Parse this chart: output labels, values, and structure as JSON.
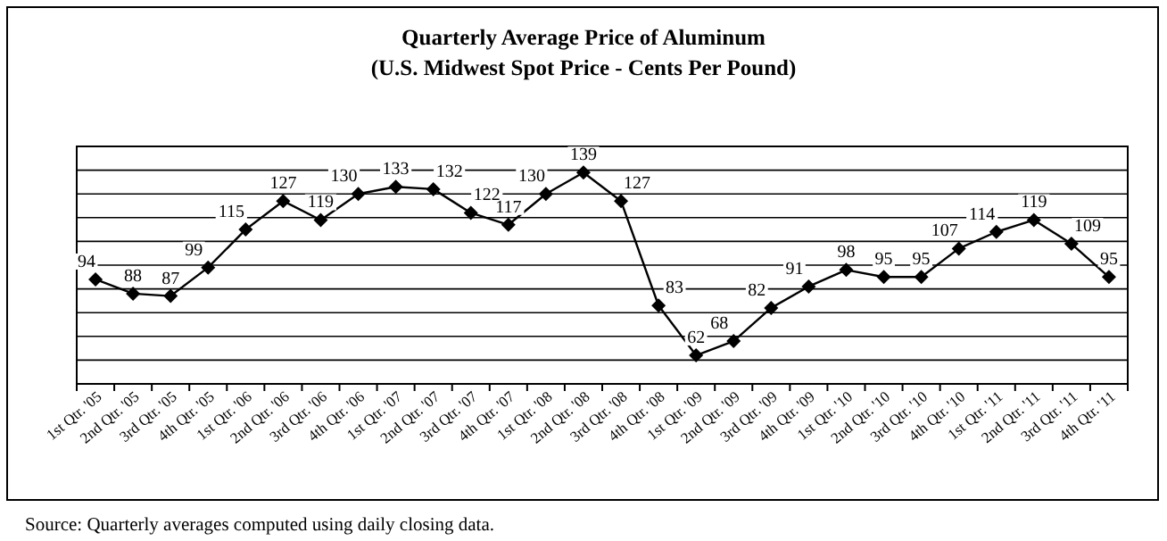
{
  "chart_data": {
    "type": "line",
    "title": "Quarterly Average Price of Aluminum",
    "subtitle": "(U.S. Midwest Spot Price - Cents Per Pound)",
    "categories": [
      "1st Qtr. '05",
      "2nd Qtr. '05",
      "3rd Qtr. '05",
      "4th Qtr. '05",
      "1st Qtr. '06",
      "2nd Qtr. '06",
      "3rd Qtr. '06",
      "4th Qtr. '06",
      "1st Qtr. '07",
      "2nd Qtr. '07",
      "3rd Qtr. '07",
      "4th Qtr. '07",
      "1st Qtr. '08",
      "2nd Qtr. '08",
      "3rd Qtr. '08",
      "4th Qtr. '08",
      "1st Qtr. '09",
      "2nd Qtr. '09",
      "3rd Qtr. '09",
      "4th Qtr. '09",
      "1st Qtr. '10",
      "2nd Qtr. '10",
      "3rd Qtr. '10",
      "4th Qtr. '10",
      "1st Qtr. '11",
      "2nd Qtr. '11",
      "3rd Qtr. '11",
      "4th Qtr. '11"
    ],
    "series": [
      {
        "color": "#000000",
        "values": [
          94,
          88,
          87,
          99,
          115,
          127,
          119,
          130,
          133,
          132,
          122,
          117,
          130,
          139,
          127,
          83,
          62,
          68,
          82,
          91,
          98,
          95,
          95,
          107,
          114,
          119,
          109,
          95
        ]
      }
    ],
    "ylim": [
      50,
      150
    ],
    "yticks": [
      {
        "value": 50,
        "label": null
      },
      {
        "value": 60,
        "label": null
      },
      {
        "value": 70,
        "label": null
      },
      {
        "value": 80,
        "label": null
      },
      {
        "value": 90,
        "label": null
      },
      {
        "value": 100,
        "label": null
      },
      {
        "value": 110,
        "label": null
      },
      {
        "value": 120,
        "label": null
      },
      {
        "value": 130,
        "label": null
      },
      {
        "value": 140,
        "label": null
      },
      {
        "value": 150,
        "label": null
      }
    ],
    "grid": "y",
    "tick_labels": "x",
    "data_labels": true,
    "marker": "diamond",
    "line_style": "solid",
    "annotations": [
      "Source:  Quarterly averages computed using daily closing data."
    ]
  }
}
